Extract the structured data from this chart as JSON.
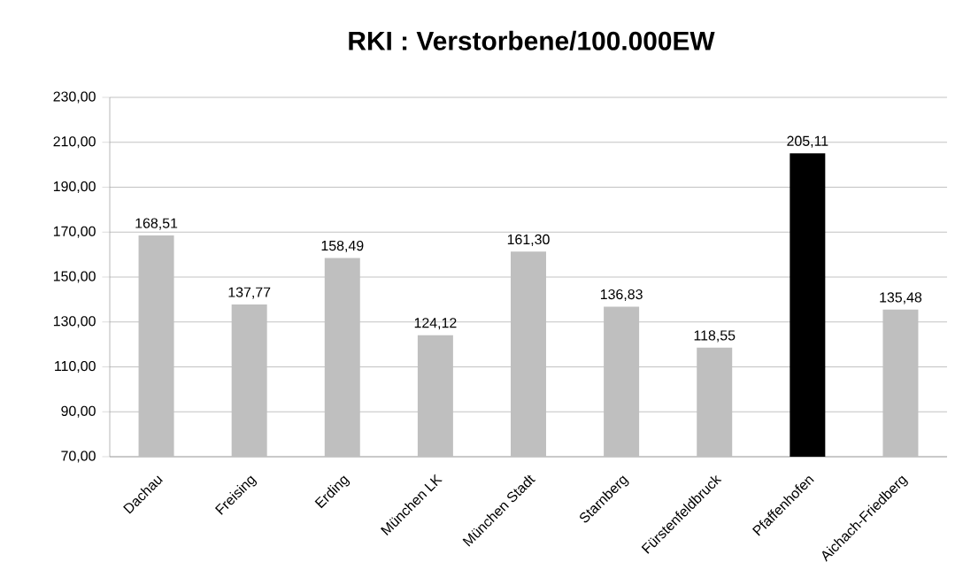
{
  "chart_data": {
    "type": "bar",
    "title": "RKI : Verstorbene/100.000EW",
    "categories": [
      "Dachau",
      "Freising",
      "Erding",
      "München LK",
      "München Stadt",
      "Starnberg",
      "Fürstenfeldbruck",
      "Pfaffenhofen",
      "Aichach-Friedberg"
    ],
    "values": [
      168.51,
      137.77,
      158.49,
      124.12,
      161.3,
      136.83,
      118.55,
      205.11,
      135.48
    ],
    "value_labels": [
      "168,51",
      "137,77",
      "158,49",
      "124,12",
      "161,30",
      "136,83",
      "118,55",
      "205,11",
      "135,48"
    ],
    "colors": [
      "#bfbfbf",
      "#bfbfbf",
      "#bfbfbf",
      "#bfbfbf",
      "#bfbfbf",
      "#bfbfbf",
      "#bfbfbf",
      "#000000",
      "#bfbfbf"
    ],
    "ylim": [
      70,
      230
    ],
    "yticks": [
      {
        "value": 70,
        "label": "70,00"
      },
      {
        "value": 90,
        "label": "90,00"
      },
      {
        "value": 110,
        "label": "110,00"
      },
      {
        "value": 130,
        "label": "130,00"
      },
      {
        "value": 150,
        "label": "150,00"
      },
      {
        "value": 170,
        "label": "170,00"
      },
      {
        "value": 190,
        "label": "190,00"
      },
      {
        "value": 210,
        "label": "210,00"
      },
      {
        "value": 230,
        "label": "230,00"
      }
    ],
    "grid": "y"
  }
}
